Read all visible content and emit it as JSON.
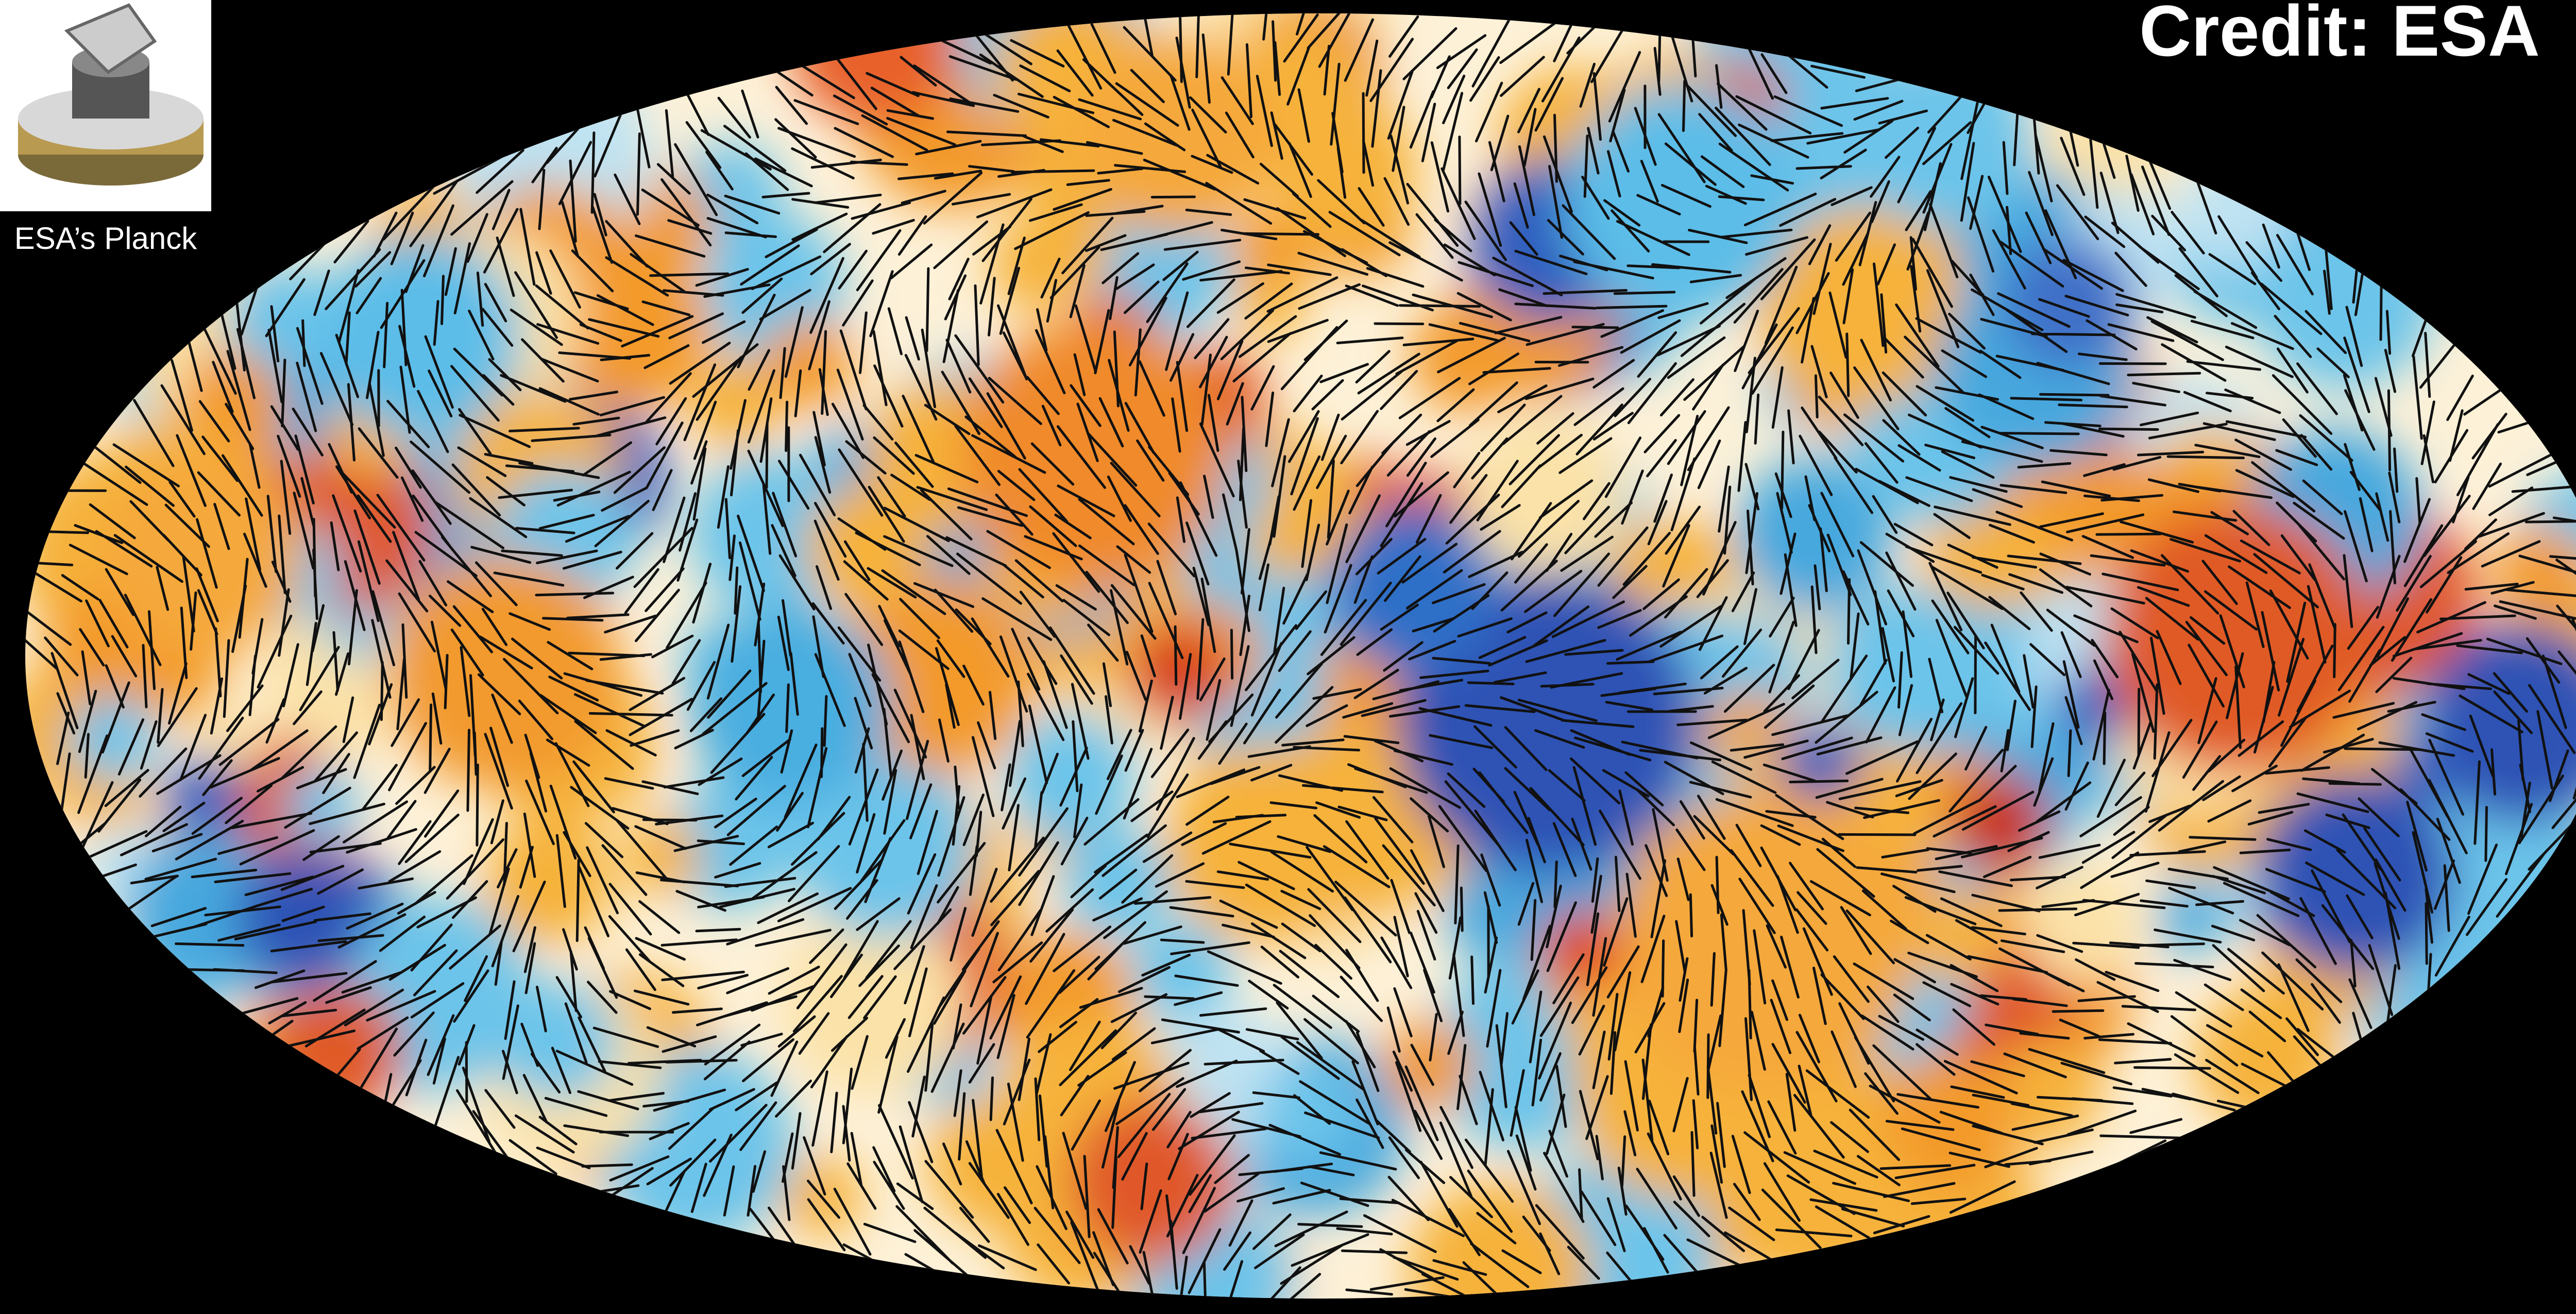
{
  "header": {
    "credit": "Credit: ESA"
  },
  "logo": {
    "caption": "ESA’s Planck"
  }
}
